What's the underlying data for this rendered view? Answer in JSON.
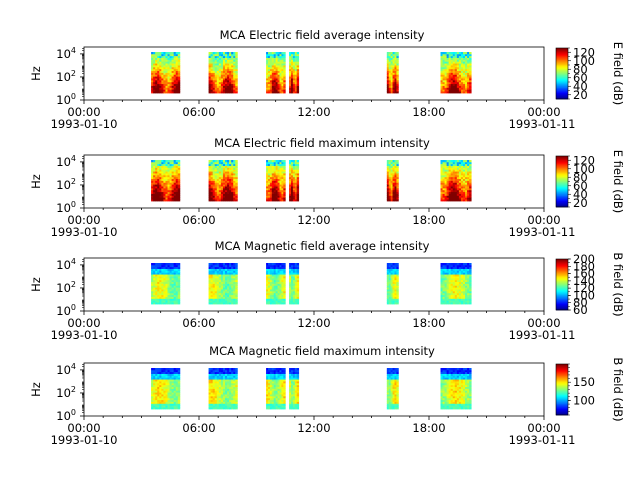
{
  "chart_data": [
    {
      "type": "heatmap",
      "title": "MCA  Electric field average intensity",
      "ylabel": "Hz",
      "y_ticks": [
        {
          "exp": 0,
          "label_base": "10",
          "label_exp": "0"
        },
        {
          "exp": 2,
          "label_base": "10",
          "label_exp": "2"
        },
        {
          "exp": 4,
          "label_base": "10",
          "label_exp": "4"
        }
      ],
      "yscale": "log",
      "x_ticks": [
        "00:00",
        "06:00",
        "12:00",
        "18:00",
        "00:00"
      ],
      "x_date_left": "1993-01-10",
      "x_date_right": "1993-01-11",
      "xlim_hours": [
        0,
        24
      ],
      "colorbar": {
        "label": "E field (dB)",
        "range": [
          10,
          130
        ],
        "colormap": "jet",
        "ticks": [
          "120",
          "100",
          "80",
          "60",
          "40",
          "20"
        ],
        "tick_values": [
          120,
          100,
          80,
          60,
          40,
          20
        ]
      },
      "data_segments_hours": [
        [
          3.5,
          5.0
        ],
        [
          6.5,
          8.0
        ],
        [
          9.5,
          10.5
        ],
        [
          10.7,
          11.2
        ],
        [
          15.8,
          16.4
        ],
        [
          18.6,
          20.2
        ]
      ],
      "profile": "electric-average"
    },
    {
      "type": "heatmap",
      "title": "MCA  Electric field maximum intensity",
      "ylabel": "Hz",
      "y_ticks": [
        {
          "exp": 0,
          "label_base": "10",
          "label_exp": "0"
        },
        {
          "exp": 2,
          "label_base": "10",
          "label_exp": "2"
        },
        {
          "exp": 4,
          "label_base": "10",
          "label_exp": "4"
        }
      ],
      "yscale": "log",
      "x_ticks": [
        "00:00",
        "06:00",
        "12:00",
        "18:00",
        "00:00"
      ],
      "x_date_left": "1993-01-10",
      "x_date_right": "1993-01-11",
      "xlim_hours": [
        0,
        24
      ],
      "colorbar": {
        "label": "E field (dB)",
        "range": [
          10,
          130
        ],
        "colormap": "jet",
        "ticks": [
          "120",
          "100",
          "80",
          "60",
          "40",
          "20"
        ],
        "tick_values": [
          120,
          100,
          80,
          60,
          40,
          20
        ]
      },
      "data_segments_hours": [
        [
          3.5,
          5.0
        ],
        [
          6.5,
          8.0
        ],
        [
          9.5,
          10.5
        ],
        [
          10.7,
          11.2
        ],
        [
          15.8,
          16.4
        ],
        [
          18.6,
          20.2
        ]
      ],
      "profile": "electric-maximum"
    },
    {
      "type": "heatmap",
      "title": "MCA  Magnetic field average intensity",
      "ylabel": "Hz",
      "y_ticks": [
        {
          "exp": 0,
          "label_base": "10",
          "label_exp": "0"
        },
        {
          "exp": 2,
          "label_base": "10",
          "label_exp": "2"
        },
        {
          "exp": 4,
          "label_base": "10",
          "label_exp": "4"
        }
      ],
      "yscale": "log",
      "x_ticks": [
        "00:00",
        "06:00",
        "12:00",
        "18:00",
        "00:00"
      ],
      "x_date_left": "1993-01-10",
      "x_date_right": "1993-01-11",
      "xlim_hours": [
        0,
        24
      ],
      "colorbar": {
        "label": "B field (dB)",
        "range": [
          60,
          200
        ],
        "colormap": "jet",
        "ticks": [
          "200",
          "180",
          "160",
          "140",
          "120",
          "100",
          "80",
          "60"
        ],
        "tick_values": [
          200,
          180,
          160,
          140,
          120,
          100,
          80,
          60
        ]
      },
      "data_segments_hours": [
        [
          3.5,
          5.0
        ],
        [
          6.5,
          8.0
        ],
        [
          9.5,
          10.5
        ],
        [
          10.7,
          11.2
        ],
        [
          15.8,
          16.4
        ],
        [
          18.6,
          20.2
        ]
      ],
      "profile": "magnetic-average"
    },
    {
      "type": "heatmap",
      "title": "MCA  Magnetic field maximum intensity",
      "ylabel": "Hz",
      "y_ticks": [
        {
          "exp": 0,
          "label_base": "10",
          "label_exp": "0"
        },
        {
          "exp": 2,
          "label_base": "10",
          "label_exp": "2"
        },
        {
          "exp": 4,
          "label_base": "10",
          "label_exp": "4"
        }
      ],
      "yscale": "log",
      "x_ticks": [
        "00:00",
        "06:00",
        "12:00",
        "18:00",
        "00:00"
      ],
      "x_date_left": "1993-01-10",
      "x_date_right": "1993-01-11",
      "xlim_hours": [
        0,
        24
      ],
      "colorbar": {
        "label": "B field (dB)",
        "range": [
          60,
          200
        ],
        "colormap": "jet",
        "ticks": [
          "150",
          "100"
        ],
        "tick_values": [
          150,
          100
        ]
      },
      "data_segments_hours": [
        [
          3.5,
          5.0
        ],
        [
          6.5,
          8.0
        ],
        [
          9.5,
          10.5
        ],
        [
          10.7,
          11.2
        ],
        [
          15.8,
          16.4
        ],
        [
          18.6,
          20.2
        ]
      ],
      "profile": "magnetic-maximum"
    }
  ]
}
